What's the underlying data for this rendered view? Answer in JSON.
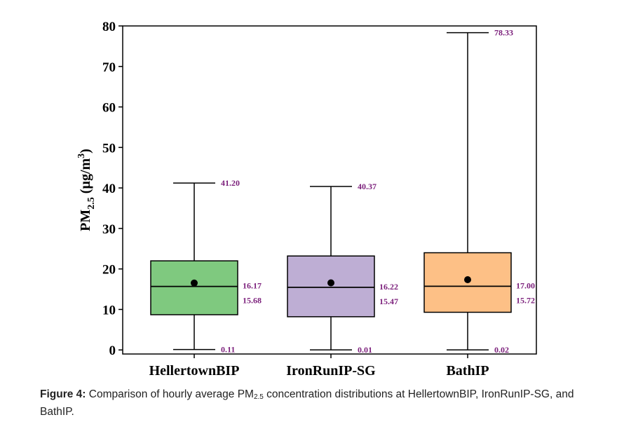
{
  "chart_data": {
    "type": "box",
    "ylabel": "PM2.5 (µg/m3)",
    "ylabel_parts": {
      "base": "PM",
      "sub": "2.5",
      "unit": " (µg/m",
      "sup": "3",
      "close": ")"
    },
    "ylim": [
      -1,
      80
    ],
    "yticks": [
      0,
      10,
      20,
      30,
      40,
      50,
      60,
      70,
      80
    ],
    "categories": [
      "HellertownBIP",
      "IronRunIP-SG",
      "BathIP"
    ],
    "colors": [
      "#7fc97f",
      "#beaed4",
      "#fdc086"
    ],
    "label_color": "#7b1f7b",
    "series": [
      {
        "name": "HellertownBIP",
        "min": 0.11,
        "q1": 8.7,
        "median": 15.68,
        "mean": 16.17,
        "q3": 22.0,
        "max": 41.2,
        "labels": {
          "max": "41.20",
          "mean": "16.17",
          "median": "15.68",
          "min": "0.11"
        }
      },
      {
        "name": "IronRunIP-SG",
        "min": 0.01,
        "q1": 8.2,
        "median": 15.47,
        "mean": 16.22,
        "q3": 23.2,
        "max": 40.37,
        "labels": {
          "max": "40.37",
          "mean": "16.22",
          "median": "15.47",
          "min": "0.01"
        }
      },
      {
        "name": "BathIP",
        "min": 0.02,
        "q1": 9.3,
        "median": 15.72,
        "mean": 17.0,
        "q3": 24.0,
        "max": 78.33,
        "labels": {
          "max": "78.33",
          "mean": "17.00",
          "median": "15.72",
          "min": "0.02"
        }
      }
    ]
  },
  "caption": {
    "label": "Figure 4:",
    "text_before": " Comparison of hourly average PM",
    "sub": "2.5",
    "text_after": " concentration distributions at HellertownBIP, IronRunIP-SG, and BathIP."
  }
}
